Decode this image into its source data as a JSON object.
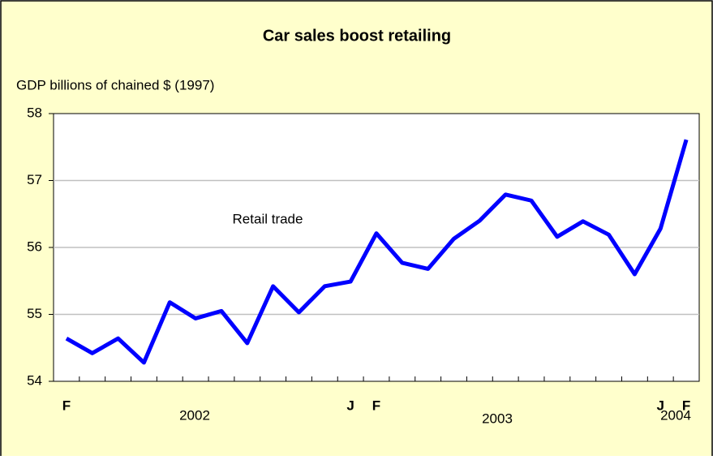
{
  "chart_data": {
    "type": "line",
    "title": "Car sales boost retailing",
    "y_axis_label": "GDP billions of chained $ (1997)",
    "annotations": [
      "Retail trade"
    ],
    "year_labels": [
      "2002",
      "2003",
      "2004"
    ],
    "categories": [
      "F",
      null,
      null,
      null,
      null,
      null,
      null,
      null,
      null,
      null,
      null,
      "J",
      "F",
      null,
      null,
      null,
      null,
      null,
      null,
      null,
      null,
      null,
      null,
      "J",
      "F"
    ],
    "series": [
      {
        "name": "Retail trade",
        "color": "#0000ff",
        "values": [
          54.64,
          54.42,
          54.64,
          54.28,
          55.18,
          54.94,
          55.05,
          54.57,
          55.42,
          55.03,
          55.42,
          55.49,
          56.21,
          55.77,
          55.68,
          56.13,
          56.4,
          56.79,
          56.7,
          56.16,
          56.39,
          56.19,
          55.6,
          56.28,
          57.61
        ]
      }
    ],
    "ylim": [
      54,
      58
    ],
    "yticks": [
      54,
      55,
      56,
      57,
      58
    ],
    "grid": true
  }
}
